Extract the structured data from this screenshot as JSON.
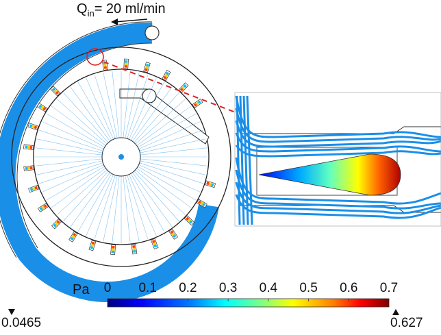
{
  "flow": {
    "symbol": "Q",
    "subscript": "in",
    "text": "= 20 ml/min"
  },
  "colorbar": {
    "unit": "Pa",
    "ticks": [
      "0",
      "0.1",
      "0.2",
      "0.3",
      "0.4",
      "0.5",
      "0.6",
      "0.7"
    ],
    "min_label": "0.0465",
    "max_label": "0.627",
    "colors": [
      "#00007f",
      "#0000ff",
      "#0080ff",
      "#00ffff",
      "#80ff80",
      "#ffff00",
      "#ff8000",
      "#ff0000",
      "#7f0000"
    ]
  },
  "accent": {
    "flow_lines": "#1a8fe8",
    "callout": "#e02020"
  }
}
